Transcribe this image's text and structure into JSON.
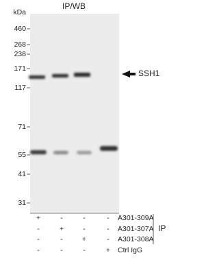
{
  "title": "IP/WB",
  "markers": {
    "unit": "kDa",
    "labels": [
      "460",
      "268",
      "238",
      "171",
      "117",
      "71",
      "55",
      "41",
      "31"
    ]
  },
  "band_label": "SSH1",
  "table": {
    "rows": [
      {
        "label": "A301-309A",
        "cells": [
          "+",
          "-",
          "-",
          "-"
        ]
      },
      {
        "label": "A301-307A",
        "cells": [
          "-",
          "+",
          "-",
          "-"
        ]
      },
      {
        "label": "A301-308A",
        "cells": [
          "-",
          "-",
          "+",
          "-"
        ]
      },
      {
        "label": "Ctrl IgG",
        "cells": [
          "-",
          "-",
          "-",
          "+"
        ]
      }
    ],
    "group_label": "IP"
  }
}
